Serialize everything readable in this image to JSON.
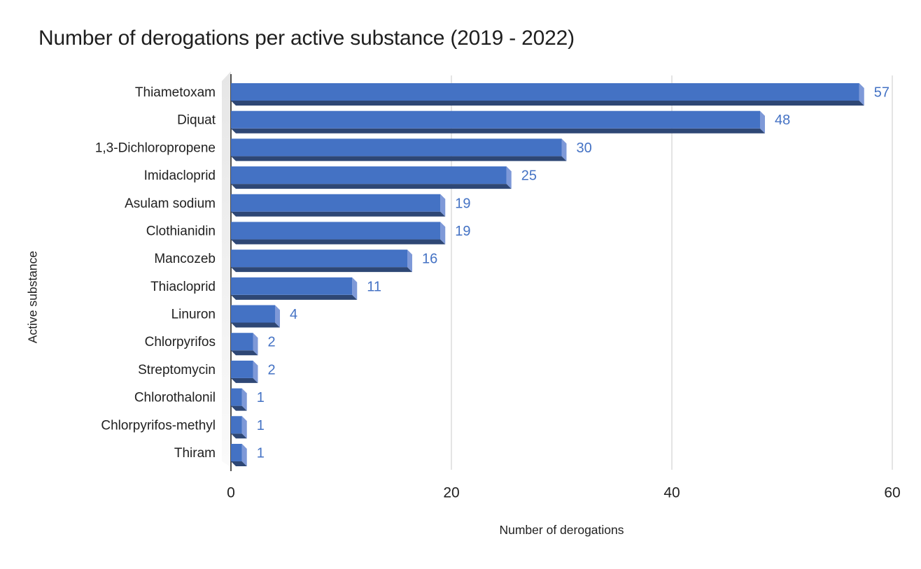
{
  "chart_data": {
    "type": "bar",
    "orientation": "horizontal",
    "title": "Number of derogations per active substance (2019 - 2022)",
    "xlabel": "Number of derogations",
    "ylabel": "Active substance",
    "categories": [
      "Thiametoxam",
      "Diquat",
      "1,3-Dichloropropene",
      "Imidacloprid",
      "Asulam sodium",
      "Clothianidin",
      "Mancozeb",
      "Thiacloprid",
      "Linuron",
      "Chlorpyrifos",
      "Streptomycin",
      "Chlorothalonil",
      "Chlorpyrifos-methyl",
      "Thiram"
    ],
    "values": [
      57,
      48,
      30,
      25,
      19,
      19,
      16,
      11,
      4,
      2,
      2,
      1,
      1,
      1
    ],
    "data_labels_shown": true,
    "x_ticks": [
      0,
      20,
      40,
      60
    ],
    "xlim": [
      0,
      60
    ],
    "grid": "vertical-light-gray",
    "legend": "none",
    "style": "3d-horizontal-bars",
    "colors": {
      "bar_face": "#4472C4",
      "bar_side": "#7E99D8",
      "bar_bottom": "#2E4775",
      "value_label": "#4472C4",
      "gridline": "#D9D9D9",
      "axis_line": "#262626",
      "text": "#212121",
      "wall_top": "#E6E6E6",
      "wall_bottom": "#FAFAFA",
      "background": "#FFFFFF"
    }
  }
}
